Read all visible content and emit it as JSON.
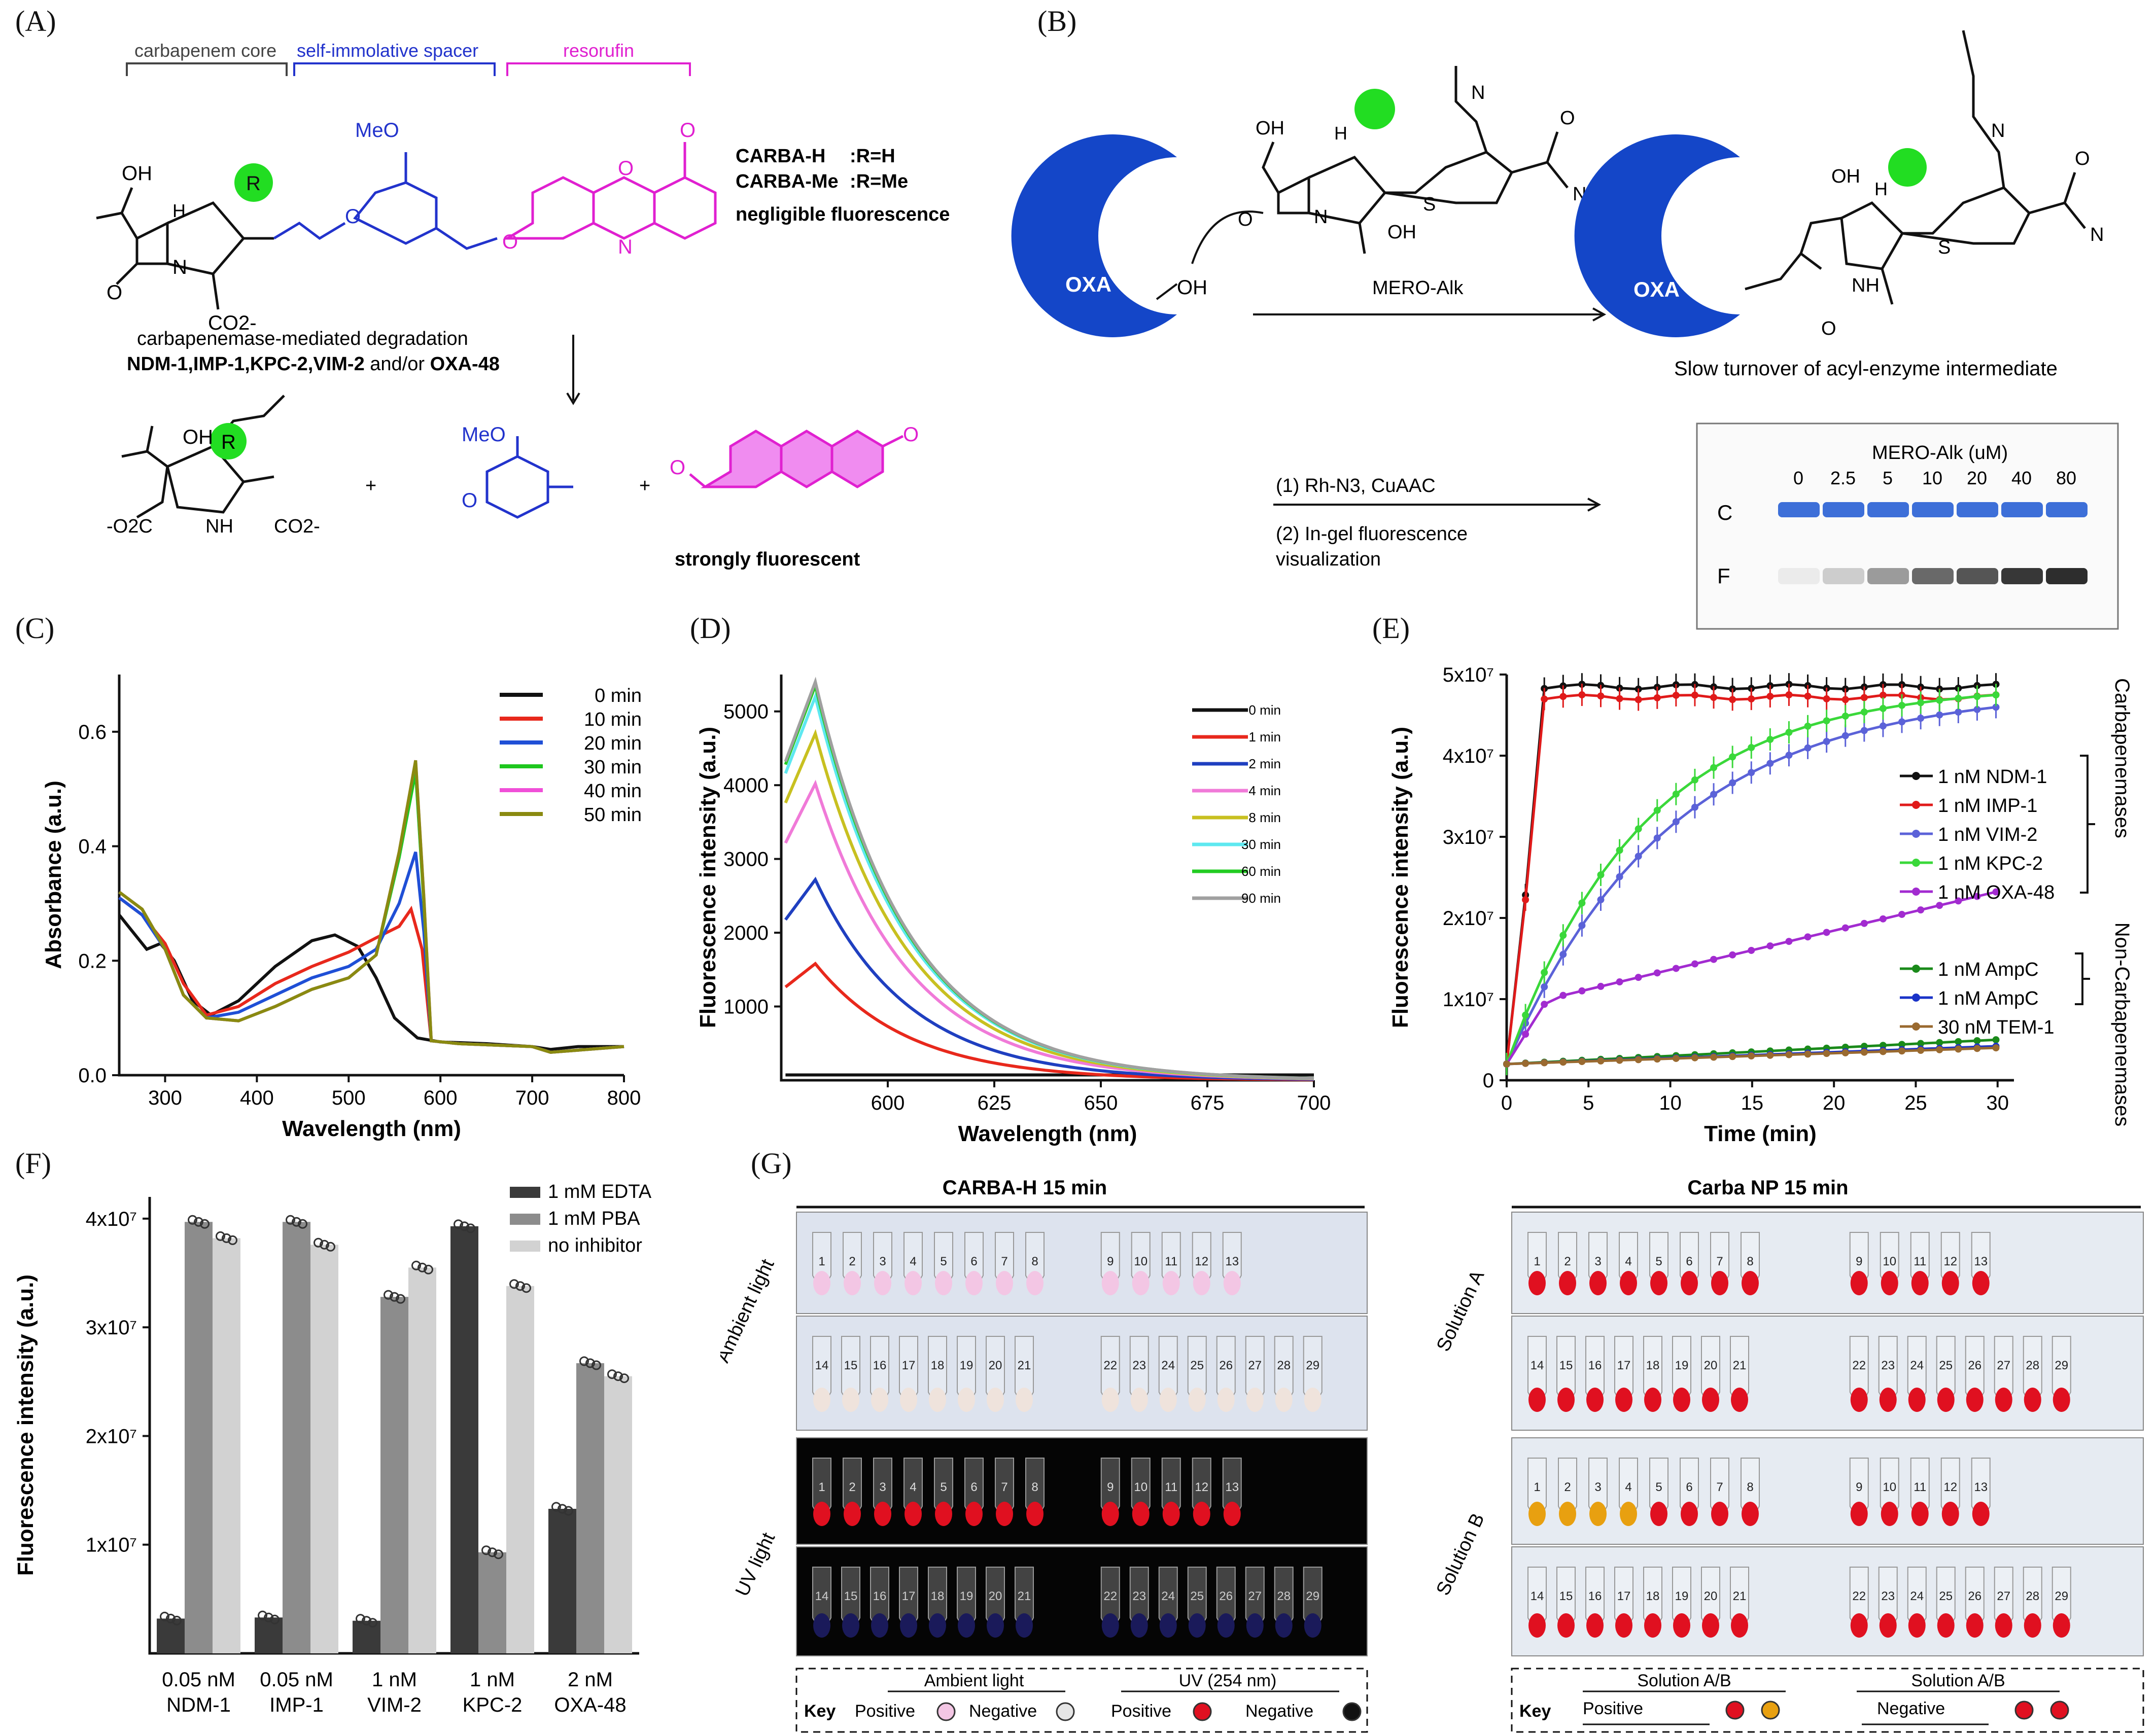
{
  "panels": {
    "A": {
      "label": "(A)",
      "brackets": [
        "carbapenem core",
        "self-immolative spacer",
        "resorufin"
      ],
      "atoms": {
        "oh": "OH",
        "h": "H",
        "r": "R",
        "n": "N",
        "o": "O",
        "co2": "CO2-",
        "meo": "MeO",
        "o2c": "-O2C",
        "nh": "NH",
        "plus": "+"
      },
      "probe_names": [
        "CARBA-H",
        "CARBA-Me"
      ],
      "probe_defs": [
        ":R=H",
        ":R=Me"
      ],
      "negligible": "negligible  fluorescence",
      "degradation": "carbapenemase-mediated degradation",
      "enzymes": "NDM-1,IMP-1,KPC-2,VIM-2",
      "enzymes_joiner": " and/or ",
      "enzymes_last": "OXA-48",
      "strong": "strongly fluorescent"
    },
    "B": {
      "label": "(B)",
      "oxa": "OXA",
      "oh": "OH",
      "reagent": "MERO-Alk",
      "acyl": "Slow turnover of acyl-enzyme intermediate",
      "step1": "(1) Rh-N3, CuAAC",
      "step2": "(2) In-gel fluorescence",
      "step2b": "visualization",
      "gel_title": "MERO-Alk (uM)",
      "gel_concs": [
        "0",
        "2.5",
        "5",
        "10",
        "20",
        "40",
        "80"
      ],
      "gel_rows": [
        "C",
        "F"
      ],
      "gel_intensity": [
        0,
        0.15,
        0.4,
        0.65,
        0.75,
        0.9,
        0.95
      ]
    },
    "C": {
      "label": "(C)"
    },
    "D": {
      "label": "(D)"
    },
    "E": {
      "label": "(E)",
      "brace_labels": [
        "Carbapenemases",
        "Non-Carbapenemases"
      ]
    },
    "F": {
      "label": "(F)"
    },
    "G": {
      "label": "(G)",
      "left_title": "CARBA-H 15 min",
      "right_title": "Carba NP 15 min",
      "left_rows": [
        "Ambient light",
        "UV light"
      ],
      "right_rows": [
        "Solution A",
        "Solution B"
      ],
      "tube_top": [
        "1",
        "2",
        "3",
        "4",
        "5",
        "6",
        "7",
        "8",
        "9",
        "10",
        "11",
        "12",
        "13"
      ],
      "tube_bottom": [
        "14",
        "15",
        "16",
        "17",
        "18",
        "19",
        "20",
        "21",
        "22",
        "23",
        "24",
        "25",
        "26",
        "27",
        "28",
        "29"
      ],
      "key_left": {
        "key": "Key",
        "ambient": "Ambient light",
        "uv": "UV (254 nm)",
        "positive": "Positive",
        "negative": "Negative"
      },
      "key_right": {
        "key": "Key",
        "solution1": "Solution A/B",
        "solution2": "Solution A/B",
        "positive": "Positive",
        "negative": "Negative"
      },
      "colors": {
        "pink": "#f3c6e4",
        "red": "#e01020",
        "orange": "#e8a010",
        "uv_bg": "#050505",
        "uv_blue": "#2a2a8a"
      }
    }
  },
  "chart_data": [
    {
      "id": "C",
      "type": "line",
      "xlabel": "Wavelength (nm)",
      "ylabel": "Absorbance (a.u.)",
      "xlim": [
        250,
        800
      ],
      "ylim": [
        0,
        0.7
      ],
      "xticks": [
        300,
        400,
        500,
        600,
        700,
        800
      ],
      "yticks": [
        0.0,
        0.2,
        0.4,
        0.6
      ],
      "series": [
        {
          "name": "0 min",
          "color": "#111111",
          "points": [
            [
              250,
              0.28
            ],
            [
              265,
              0.25
            ],
            [
              280,
              0.22
            ],
            [
              295,
              0.23
            ],
            [
              310,
              0.2
            ],
            [
              330,
              0.13
            ],
            [
              350,
              0.105
            ],
            [
              380,
              0.13
            ],
            [
              420,
              0.19
            ],
            [
              460,
              0.235
            ],
            [
              485,
              0.245
            ],
            [
              510,
              0.225
            ],
            [
              530,
              0.17
            ],
            [
              550,
              0.1
            ],
            [
              575,
              0.065
            ],
            [
              600,
              0.058
            ],
            [
              650,
              0.055
            ],
            [
              700,
              0.05
            ],
            [
              720,
              0.045
            ],
            [
              750,
              0.05
            ],
            [
              800,
              0.05
            ]
          ]
        },
        {
          "name": "10 min",
          "color": "#e8281c",
          "points": [
            [
              250,
              0.31
            ],
            [
              275,
              0.28
            ],
            [
              300,
              0.23
            ],
            [
              320,
              0.16
            ],
            [
              345,
              0.105
            ],
            [
              380,
              0.12
            ],
            [
              420,
              0.16
            ],
            [
              460,
              0.19
            ],
            [
              500,
              0.215
            ],
            [
              530,
              0.24
            ],
            [
              555,
              0.26
            ],
            [
              568,
              0.29
            ],
            [
              580,
              0.22
            ],
            [
              590,
              0.06
            ],
            [
              620,
              0.055
            ],
            [
              700,
              0.05
            ],
            [
              720,
              0.04
            ],
            [
              800,
              0.05
            ]
          ]
        },
        {
          "name": "20 min",
          "color": "#1f4fd6",
          "points": [
            [
              250,
              0.31
            ],
            [
              275,
              0.28
            ],
            [
              300,
              0.22
            ],
            [
              320,
              0.14
            ],
            [
              345,
              0.1
            ],
            [
              380,
              0.11
            ],
            [
              420,
              0.14
            ],
            [
              460,
              0.17
            ],
            [
              500,
              0.19
            ],
            [
              530,
              0.22
            ],
            [
              555,
              0.3
            ],
            [
              573,
              0.39
            ],
            [
              582,
              0.25
            ],
            [
              590,
              0.06
            ],
            [
              620,
              0.055
            ],
            [
              700,
              0.05
            ],
            [
              720,
              0.04
            ],
            [
              800,
              0.05
            ]
          ]
        },
        {
          "name": "30 min",
          "color": "#1ec71e",
          "points": [
            [
              250,
              0.32
            ],
            [
              275,
              0.29
            ],
            [
              300,
              0.22
            ],
            [
              320,
              0.14
            ],
            [
              345,
              0.1
            ],
            [
              380,
              0.095
            ],
            [
              420,
              0.12
            ],
            [
              460,
              0.15
            ],
            [
              500,
              0.17
            ],
            [
              530,
              0.21
            ],
            [
              555,
              0.38
            ],
            [
              573,
              0.53
            ],
            [
              582,
              0.3
            ],
            [
              590,
              0.06
            ],
            [
              620,
              0.055
            ],
            [
              700,
              0.05
            ],
            [
              720,
              0.04
            ],
            [
              800,
              0.05
            ]
          ]
        },
        {
          "name": "40 min",
          "color": "#f04fd8",
          "points": [
            [
              250,
              0.32
            ],
            [
              275,
              0.29
            ],
            [
              300,
              0.22
            ],
            [
              320,
              0.14
            ],
            [
              345,
              0.1
            ],
            [
              380,
              0.095
            ],
            [
              420,
              0.12
            ],
            [
              460,
              0.15
            ],
            [
              500,
              0.17
            ],
            [
              530,
              0.21
            ],
            [
              555,
              0.39
            ],
            [
              573,
              0.55
            ],
            [
              582,
              0.31
            ],
            [
              590,
              0.06
            ],
            [
              620,
              0.055
            ],
            [
              700,
              0.05
            ],
            [
              720,
              0.04
            ],
            [
              800,
              0.05
            ]
          ]
        },
        {
          "name": "50 min",
          "color": "#8a8a10",
          "points": [
            [
              250,
              0.32
            ],
            [
              275,
              0.29
            ],
            [
              300,
              0.22
            ],
            [
              320,
              0.14
            ],
            [
              345,
              0.1
            ],
            [
              380,
              0.095
            ],
            [
              420,
              0.12
            ],
            [
              460,
              0.15
            ],
            [
              500,
              0.17
            ],
            [
              530,
              0.21
            ],
            [
              555,
              0.39
            ],
            [
              573,
              0.55
            ],
            [
              582,
              0.31
            ],
            [
              590,
              0.06
            ],
            [
              620,
              0.055
            ],
            [
              700,
              0.05
            ],
            [
              720,
              0.04
            ],
            [
              800,
              0.05
            ]
          ]
        }
      ]
    },
    {
      "id": "D",
      "type": "line",
      "xlabel": "Wavelength (nm)",
      "ylabel": "Fluorescence intensity (a.u.)",
      "xlim": [
        575,
        700
      ],
      "ylim": [
        0,
        5500
      ],
      "xticks": [
        600,
        625,
        650,
        675,
        700
      ],
      "yticks": [
        1000,
        2000,
        3000,
        4000,
        5000
      ],
      "series": [
        {
          "name": "0 min",
          "color": "#111111",
          "peak": 80
        },
        {
          "name": "1 min",
          "color": "#e8281c",
          "peak": 1580
        },
        {
          "name": "2 min",
          "color": "#1f3fc0",
          "peak": 2720
        },
        {
          "name": "4 min",
          "color": "#f07ad8",
          "peak": 4020
        },
        {
          "name": "8 min",
          "color": "#c8c020",
          "peak": 4700
        },
        {
          "name": "30 min",
          "color": "#5ee8f0",
          "peak": 5200
        },
        {
          "name": "60 min",
          "color": "#22cc22",
          "peak": 5350
        },
        {
          "name": "90 min",
          "color": "#a0a0a0",
          "peak": 5400
        }
      ]
    },
    {
      "id": "E",
      "type": "line",
      "xlabel": "Time (min)",
      "ylabel": "Fluorescence intensity (a.u.)",
      "xlim": [
        0,
        31
      ],
      "ylim": [
        0,
        5
      ],
      "xticks": [
        0,
        5,
        10,
        15,
        20,
        25,
        30
      ],
      "ytick_values": [
        0,
        1,
        2,
        3,
        4,
        5
      ],
      "ytick_labels": [
        "0",
        "1x10⁷",
        "2x10⁷",
        "3x10⁷",
        "4x10⁷",
        "5x10⁷"
      ],
      "series": [
        {
          "name": "1 nM NDM-1",
          "color": "#111111",
          "marker": "circle",
          "model": "fast",
          "plateau": 4.85
        },
        {
          "name": "1 nM IMP-1",
          "color": "#e01a1a",
          "marker": "square",
          "model": "fast",
          "plateau": 4.72
        },
        {
          "name": "1 nM VIM-2",
          "color": "#5b62d8",
          "marker": "triangle",
          "model": "sigmoid",
          "plateau": 4.6
        },
        {
          "name": "1 nM KPC-2",
          "color": "#3ad83a",
          "marker": "triangle-down",
          "model": "sigmoid",
          "plateau": 4.75
        },
        {
          "name": "1 nM OXA-48",
          "color": "#a22bd0",
          "marker": "diamond",
          "model": "linear",
          "plateau": 2.35
        },
        {
          "name": "1 nM AmpC",
          "color": "#1a8a1a",
          "marker": "circle",
          "model": "slow",
          "plateau": 0.5
        },
        {
          "name": "1 nM AmpC",
          "color": "#1a33c8",
          "marker": "square",
          "model": "slow",
          "plateau": 0.42
        },
        {
          "name": "30 nM TEM-1",
          "color": "#9a6a30",
          "marker": "triangle",
          "model": "slow",
          "plateau": 0.4
        }
      ]
    },
    {
      "id": "F",
      "type": "bar",
      "ylabel": "Fluorescence intensity (a.u.)",
      "ylim": [
        0,
        4.2
      ],
      "ytick_values": [
        1,
        2,
        3,
        4
      ],
      "ytick_labels": [
        "1x10⁷",
        "2x10⁷",
        "3x10⁷",
        "4x10⁷"
      ],
      "categories": [
        "0.05 nM|NDM-1",
        "0.05 nM|IMP-1",
        "1 nM|VIM-2",
        "1 nM|KPC-2",
        "2 nM|OXA-48"
      ],
      "series": [
        {
          "name": "1 mM EDTA",
          "color": "#3a3a3a",
          "values": [
            0.32,
            0.33,
            0.3,
            3.93,
            1.33
          ]
        },
        {
          "name": "1 mM PBA",
          "color": "#8c8c8c",
          "values": [
            3.97,
            3.97,
            3.28,
            0.93,
            2.67
          ]
        },
        {
          "name": "no inhibitor",
          "color": "#d2d2d2",
          "values": [
            3.82,
            3.76,
            3.55,
            3.38,
            2.55
          ]
        }
      ]
    }
  ]
}
